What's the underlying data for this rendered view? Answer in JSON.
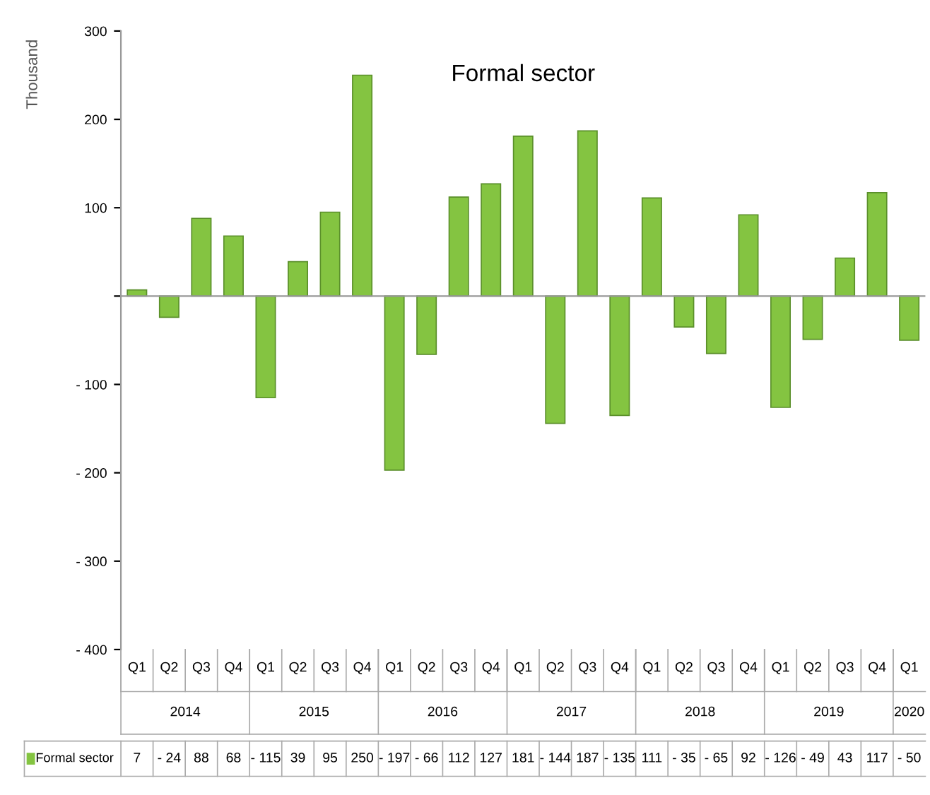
{
  "chart_data": {
    "type": "bar",
    "title": "Formal sector",
    "ylabel": "Thousand",
    "categories": [
      "Q1",
      "Q2",
      "Q3",
      "Q4",
      "Q1",
      "Q2",
      "Q3",
      "Q4",
      "Q1",
      "Q2",
      "Q3",
      "Q4",
      "Q1",
      "Q2",
      "Q3",
      "Q4",
      "Q1",
      "Q2",
      "Q3",
      "Q4",
      "Q1",
      "Q2",
      "Q3",
      "Q4",
      "Q1"
    ],
    "series": [
      {
        "name": "Formal sector",
        "color": "#84c441",
        "values": [
          7,
          -24,
          88,
          68,
          -115,
          39,
          95,
          250,
          -197,
          -66,
          112,
          127,
          181,
          -144,
          187,
          -135,
          111,
          -35,
          -65,
          92,
          -126,
          -49,
          43,
          117,
          -50
        ],
        "value_labels": [
          "7",
          "- 24",
          "88",
          "68",
          "- 115",
          "39",
          "95",
          "250",
          "- 197",
          "- 66",
          "112",
          "127",
          "181",
          "- 144",
          "187",
          "- 135",
          "111",
          "- 35",
          "- 65",
          "92",
          "- 126",
          "- 49",
          "43",
          "117",
          "- 50"
        ]
      }
    ],
    "annotations": [
      "2014",
      "2015",
      "2016",
      "2017",
      "2018",
      "2019",
      "2020"
    ],
    "ylim": [
      -400,
      300
    ],
    "yticks": [
      {
        "value": -400,
        "label": "- 400"
      },
      {
        "value": -300,
        "label": "- 300"
      },
      {
        "value": -200,
        "label": "- 200"
      },
      {
        "value": -100,
        "label": "- 100"
      },
      {
        "value": 0,
        "label": null
      },
      100,
      200,
      300
    ],
    "ref_lines": [
      {
        "axis": "y",
        "value": 0,
        "color": "#999999"
      }
    ],
    "grid": false,
    "legend": "bottom"
  }
}
